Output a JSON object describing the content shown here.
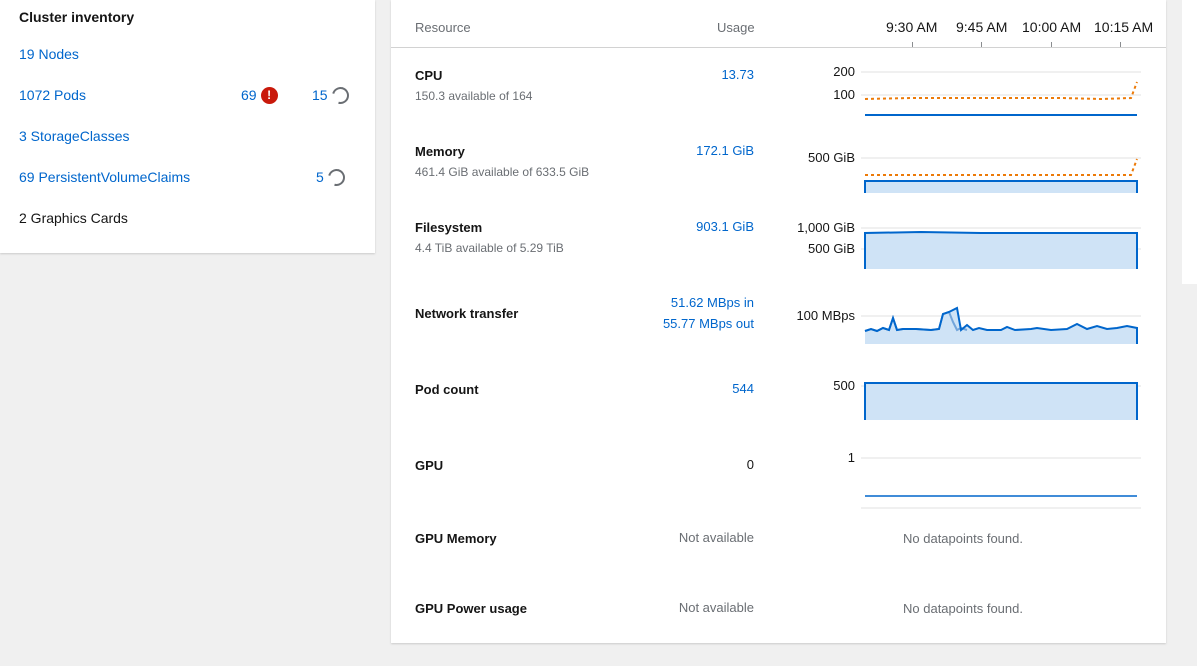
{
  "inventory": {
    "title": "Cluster inventory",
    "nodes": "19 Nodes",
    "pods": "1072 Pods",
    "pods_error_count": "69",
    "pods_progress_count": "15",
    "storage_classes": "3 StorageClasses",
    "pvcs": "69 PersistentVolumeClaims",
    "pvcs_progress_count": "5",
    "graphics_cards": "2 Graphics Cards"
  },
  "utilization": {
    "headers": {
      "resource": "Resource",
      "usage": "Usage"
    },
    "time_labels": [
      "9:30 AM",
      "9:45 AM",
      "10:00 AM",
      "10:15 AM"
    ],
    "resources": [
      {
        "name": "CPU",
        "sub": "150.3 available of 164",
        "usage": "13.73",
        "y_ticks": [
          "200",
          "100"
        ]
      },
      {
        "name": "Memory",
        "sub": "461.4 GiB available of 633.5 GiB",
        "usage": "172.1 GiB",
        "y_ticks": [
          "500 GiB"
        ]
      },
      {
        "name": "Filesystem",
        "sub": "4.4 TiB available of 5.29 TiB",
        "usage": "903.1 GiB",
        "y_ticks": [
          "1,000 GiB",
          "500 GiB"
        ]
      },
      {
        "name": "Network transfer",
        "usage_in": "51.62 MBps in",
        "usage_out": "55.77 MBps out",
        "y_ticks": [
          "100 MBps"
        ]
      },
      {
        "name": "Pod count",
        "usage": "544",
        "y_ticks": [
          "500"
        ]
      },
      {
        "name": "GPU",
        "usage": "0",
        "y_ticks": [
          "1"
        ]
      },
      {
        "name": "GPU Memory",
        "usage": "Not available",
        "no_data": "No datapoints found."
      },
      {
        "name": "GPU Power usage",
        "usage": "Not available",
        "no_data": "No datapoints found."
      }
    ],
    "colors": {
      "usage_line": "#0066cc",
      "usage_fill": "#cfe3f6",
      "request_line": "#ec7a08",
      "grid": "#e0e0e0"
    }
  }
}
